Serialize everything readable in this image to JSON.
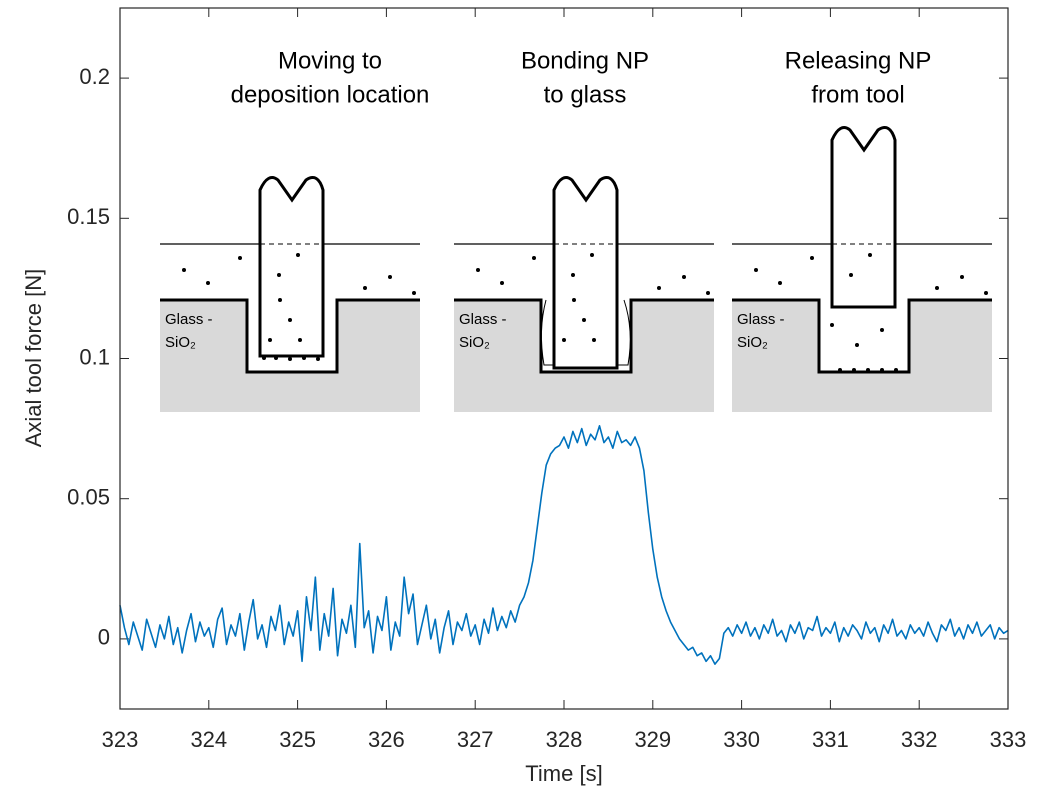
{
  "chart_data": {
    "type": "line",
    "xlabel": "Time [s]",
    "ylabel": "Axial tool force [N]",
    "xlim": [
      323,
      333
    ],
    "ylim": [
      -0.025,
      0.225
    ],
    "xticks": [
      323,
      324,
      325,
      326,
      327,
      328,
      329,
      330,
      331,
      332,
      333
    ],
    "yticks": [
      0,
      0.05,
      0.1,
      0.15,
      0.2
    ],
    "annotations": [
      {
        "lines": [
          "Moving to",
          "deposition location"
        ],
        "material": [
          "Glass -",
          "SiO₂"
        ]
      },
      {
        "lines": [
          "Bonding NP",
          "to glass"
        ],
        "material": [
          "Glass -",
          "SiO₂"
        ]
      },
      {
        "lines": [
          "Releasing NP",
          "from tool"
        ],
        "material": [
          "Glass -",
          "SiO₂"
        ]
      }
    ],
    "x": [
      323,
      323.05,
      323.1,
      323.15,
      323.2,
      323.25,
      323.3,
      323.35,
      323.4,
      323.45,
      323.5,
      323.55,
      323.6,
      323.65,
      323.7,
      323.75,
      323.8,
      323.85,
      323.9,
      323.95,
      324,
      324.05,
      324.1,
      324.15,
      324.2,
      324.25,
      324.3,
      324.35,
      324.4,
      324.45,
      324.5,
      324.55,
      324.6,
      324.65,
      324.7,
      324.75,
      324.8,
      324.85,
      324.9,
      324.95,
      325,
      325.05,
      325.1,
      325.15,
      325.2,
      325.25,
      325.3,
      325.35,
      325.4,
      325.45,
      325.5,
      325.55,
      325.6,
      325.65,
      325.7,
      325.75,
      325.8,
      325.85,
      325.9,
      325.95,
      326,
      326.05,
      326.1,
      326.15,
      326.2,
      326.25,
      326.3,
      326.35,
      326.4,
      326.45,
      326.5,
      326.55,
      326.6,
      326.65,
      326.7,
      326.75,
      326.8,
      326.85,
      326.9,
      326.95,
      327,
      327.05,
      327.1,
      327.15,
      327.2,
      327.25,
      327.3,
      327.35,
      327.4,
      327.45,
      327.5,
      327.55,
      327.6,
      327.65,
      327.7,
      327.75,
      327.8,
      327.85,
      327.9,
      327.95,
      328,
      328.05,
      328.1,
      328.15,
      328.2,
      328.25,
      328.3,
      328.35,
      328.4,
      328.45,
      328.5,
      328.55,
      328.6,
      328.65,
      328.7,
      328.75,
      328.8,
      328.85,
      328.9,
      328.95,
      329,
      329.05,
      329.1,
      329.15,
      329.2,
      329.25,
      329.3,
      329.35,
      329.4,
      329.45,
      329.5,
      329.55,
      329.6,
      329.65,
      329.7,
      329.75,
      329.8,
      329.85,
      329.9,
      329.95,
      330,
      330.05,
      330.1,
      330.15,
      330.2,
      330.25,
      330.3,
      330.35,
      330.4,
      330.45,
      330.5,
      330.55,
      330.6,
      330.65,
      330.7,
      330.75,
      330.8,
      330.85,
      330.9,
      330.95,
      331,
      331.05,
      331.1,
      331.15,
      331.2,
      331.25,
      331.3,
      331.35,
      331.4,
      331.45,
      331.5,
      331.55,
      331.6,
      331.65,
      331.7,
      331.75,
      331.8,
      331.85,
      331.9,
      331.95,
      332,
      332.05,
      332.1,
      332.15,
      332.2,
      332.25,
      332.3,
      332.35,
      332.4,
      332.45,
      332.5,
      332.55,
      332.6,
      332.65,
      332.7,
      332.75,
      332.8,
      332.85,
      332.9,
      332.95,
      333
    ],
    "series": [
      {
        "color": "#0072bd",
        "values": [
          0.012,
          0.004,
          -0.002,
          0.006,
          0.001,
          -0.004,
          0.007,
          0.002,
          -0.003,
          0.005,
          0.0,
          0.008,
          -0.002,
          0.004,
          -0.005,
          0.003,
          0.009,
          -0.001,
          0.006,
          0.001,
          0.004,
          -0.003,
          0.007,
          0.011,
          -0.002,
          0.005,
          0.001,
          0.009,
          -0.004,
          0.006,
          0.014,
          0.0,
          0.005,
          -0.003,
          0.008,
          0.003,
          0.012,
          -0.002,
          0.006,
          0.001,
          0.01,
          -0.008,
          0.015,
          0.003,
          0.022,
          -0.004,
          0.009,
          0.001,
          0.018,
          -0.006,
          0.007,
          0.002,
          0.012,
          -0.003,
          0.034,
          0.004,
          0.01,
          -0.005,
          0.008,
          0.003,
          0.015,
          -0.004,
          0.006,
          0.001,
          0.022,
          0.009,
          0.016,
          -0.002,
          0.005,
          0.012,
          0.0,
          0.007,
          -0.005,
          0.004,
          0.01,
          -0.002,
          0.006,
          0.003,
          0.009,
          0.001,
          0.005,
          -0.002,
          0.007,
          0.002,
          0.011,
          0.003,
          0.008,
          0.004,
          0.01,
          0.006,
          0.012,
          0.015,
          0.02,
          0.028,
          0.04,
          0.052,
          0.062,
          0.066,
          0.068,
          0.069,
          0.072,
          0.068,
          0.074,
          0.07,
          0.075,
          0.069,
          0.073,
          0.071,
          0.076,
          0.07,
          0.072,
          0.068,
          0.074,
          0.07,
          0.071,
          0.069,
          0.072,
          0.068,
          0.06,
          0.045,
          0.032,
          0.022,
          0.015,
          0.01,
          0.006,
          0.003,
          0.0,
          -0.002,
          -0.004,
          -0.003,
          -0.006,
          -0.005,
          -0.008,
          -0.006,
          -0.009,
          -0.007,
          0.002,
          0.004,
          0.001,
          0.005,
          0.002,
          0.006,
          0.001,
          0.004,
          0.0,
          0.005,
          0.002,
          0.007,
          0.001,
          0.003,
          -0.001,
          0.005,
          0.002,
          0.006,
          0.0,
          0.004,
          0.003,
          0.008,
          0.001,
          0.004,
          0.002,
          0.006,
          -0.001,
          0.004,
          0.001,
          0.005,
          0.003,
          0.0,
          0.006,
          0.002,
          0.004,
          -0.001,
          0.005,
          0.002,
          0.007,
          0.001,
          0.003,
          0.0,
          0.005,
          0.002,
          0.004,
          0.001,
          0.006,
          0.002,
          -0.001,
          0.005,
          0.003,
          0.007,
          0.001,
          0.004,
          0.0,
          0.005,
          0.002,
          0.006,
          0.001,
          0.003,
          0.005,
          0.0,
          0.004,
          0.002,
          0.003
        ]
      }
    ]
  }
}
